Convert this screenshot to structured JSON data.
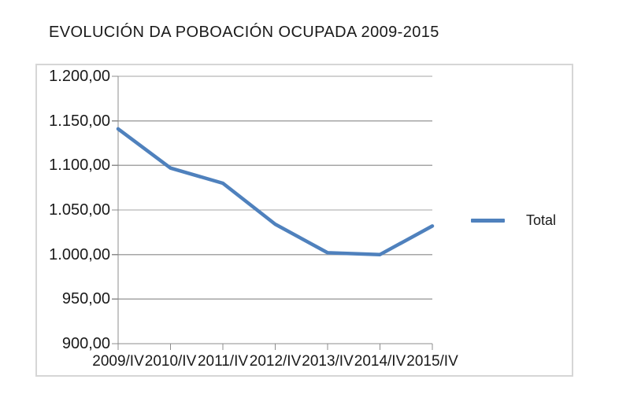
{
  "page": {
    "title": "EVOLUCIÓN DA POBOACIÓN OCUPADA 2009-2015"
  },
  "chart_data": {
    "type": "line",
    "title": "EVOLUCIÓN DA POBOACIÓN OCUPADA 2009-2015",
    "categories": [
      "2009/IV",
      "2010/IV",
      "2011/IV",
      "2012/IV",
      "2013/IV",
      "2014/IV",
      "2015/IV"
    ],
    "series": [
      {
        "name": "Total",
        "values": [
          1141,
          1097,
          1080,
          1034,
          1002,
          1000,
          1032
        ],
        "color": "#4F81BD"
      }
    ],
    "xlabel": "",
    "ylabel": "",
    "ylim": [
      900,
      1200
    ],
    "ytick_step": 50,
    "ytick_labels": [
      "1.200,00",
      "1.150,00",
      "1.100,00",
      "1.050,00",
      "1.000,00",
      "950,00",
      "900,00"
    ],
    "grid": true,
    "legend_position": "right"
  },
  "legend": {
    "label": "Total"
  },
  "colors": {
    "line": "#4F81BD",
    "gridline": "#A6A6A6",
    "axis": "#8C8C8C",
    "frame_border": "#D6D6D6",
    "text": "#1A1A1A"
  }
}
